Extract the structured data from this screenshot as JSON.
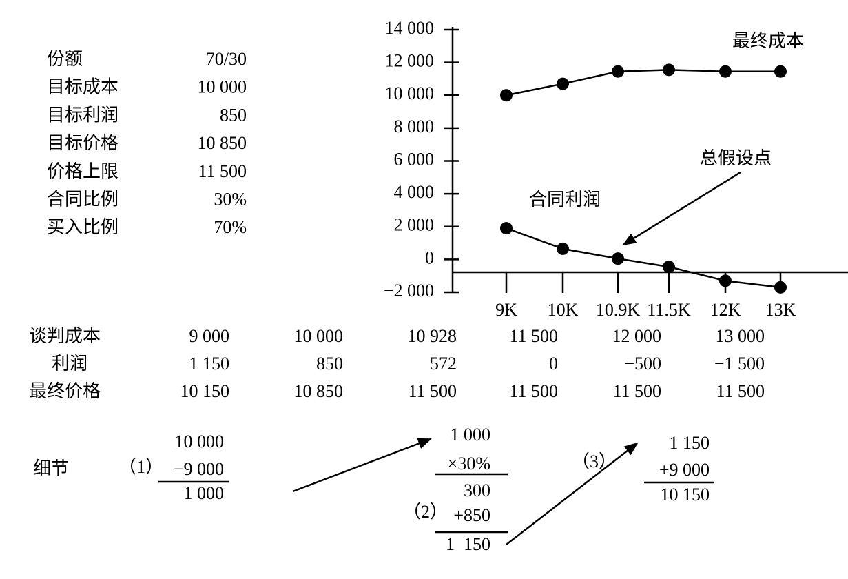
{
  "parameters": {
    "rows": [
      [
        "份额",
        "70/30"
      ],
      [
        "目标成本",
        "10 000"
      ],
      [
        "目标利润",
        "850"
      ],
      [
        "目标价格",
        "10 850"
      ],
      [
        "价格上限",
        "11 500"
      ],
      [
        "合同比例",
        "30%"
      ],
      [
        "买入比例",
        "70%"
      ]
    ]
  },
  "chart_data": {
    "type": "line",
    "categories": [
      "9K",
      "10K",
      "10.9K",
      "11.5K",
      "12K",
      "13K"
    ],
    "series": [
      {
        "name": "最终成本",
        "color": "#000000",
        "values": [
          10000,
          10700,
          11450,
          11550,
          11450,
          11450
        ]
      },
      {
        "name": "合同利润",
        "color": "#000000",
        "values": [
          1900,
          650,
          50,
          -450,
          -1300,
          -1700
        ]
      }
    ],
    "annotations": [
      "总假设点"
    ],
    "ylim": [
      -2000,
      14000
    ],
    "yticks": [
      {
        "value": -2000,
        "label": "−2 000"
      },
      0,
      {
        "value": 2000,
        "label": "2 000"
      },
      {
        "value": 4000,
        "label": "4 000"
      },
      {
        "value": 6000,
        "label": "6 000"
      },
      {
        "value": 8000,
        "label": "8 000"
      },
      {
        "value": 10000,
        "label": "10 000"
      },
      {
        "value": 12000,
        "label": "12 000"
      },
      {
        "value": 14000,
        "label": "14 000"
      }
    ],
    "grid": false
  },
  "table": {
    "rows": [
      [
        "谈判成本",
        "9 000",
        "10 000",
        "10 928",
        "11 500",
        "12 000",
        "13 000"
      ],
      [
        "利润",
        "1 150",
        "850",
        "572",
        "0",
        "−500",
        "−1 500"
      ],
      [
        "最终价格",
        "10 150",
        "10 850",
        "11 500",
        "11 500",
        "11 500",
        "11 500"
      ]
    ]
  },
  "details": {
    "label": "细节",
    "steps": [
      {
        "marker": "（1）",
        "lines": [
          "10 000",
          "−9 000",
          "1 000"
        ]
      },
      {
        "marker": "（2）",
        "lines": [
          "1 000",
          "×30%",
          "300",
          "+850",
          "1  150"
        ]
      },
      {
        "marker": "（3）",
        "lines": [
          "1 150",
          "+9 000",
          "10 150"
        ]
      }
    ]
  }
}
